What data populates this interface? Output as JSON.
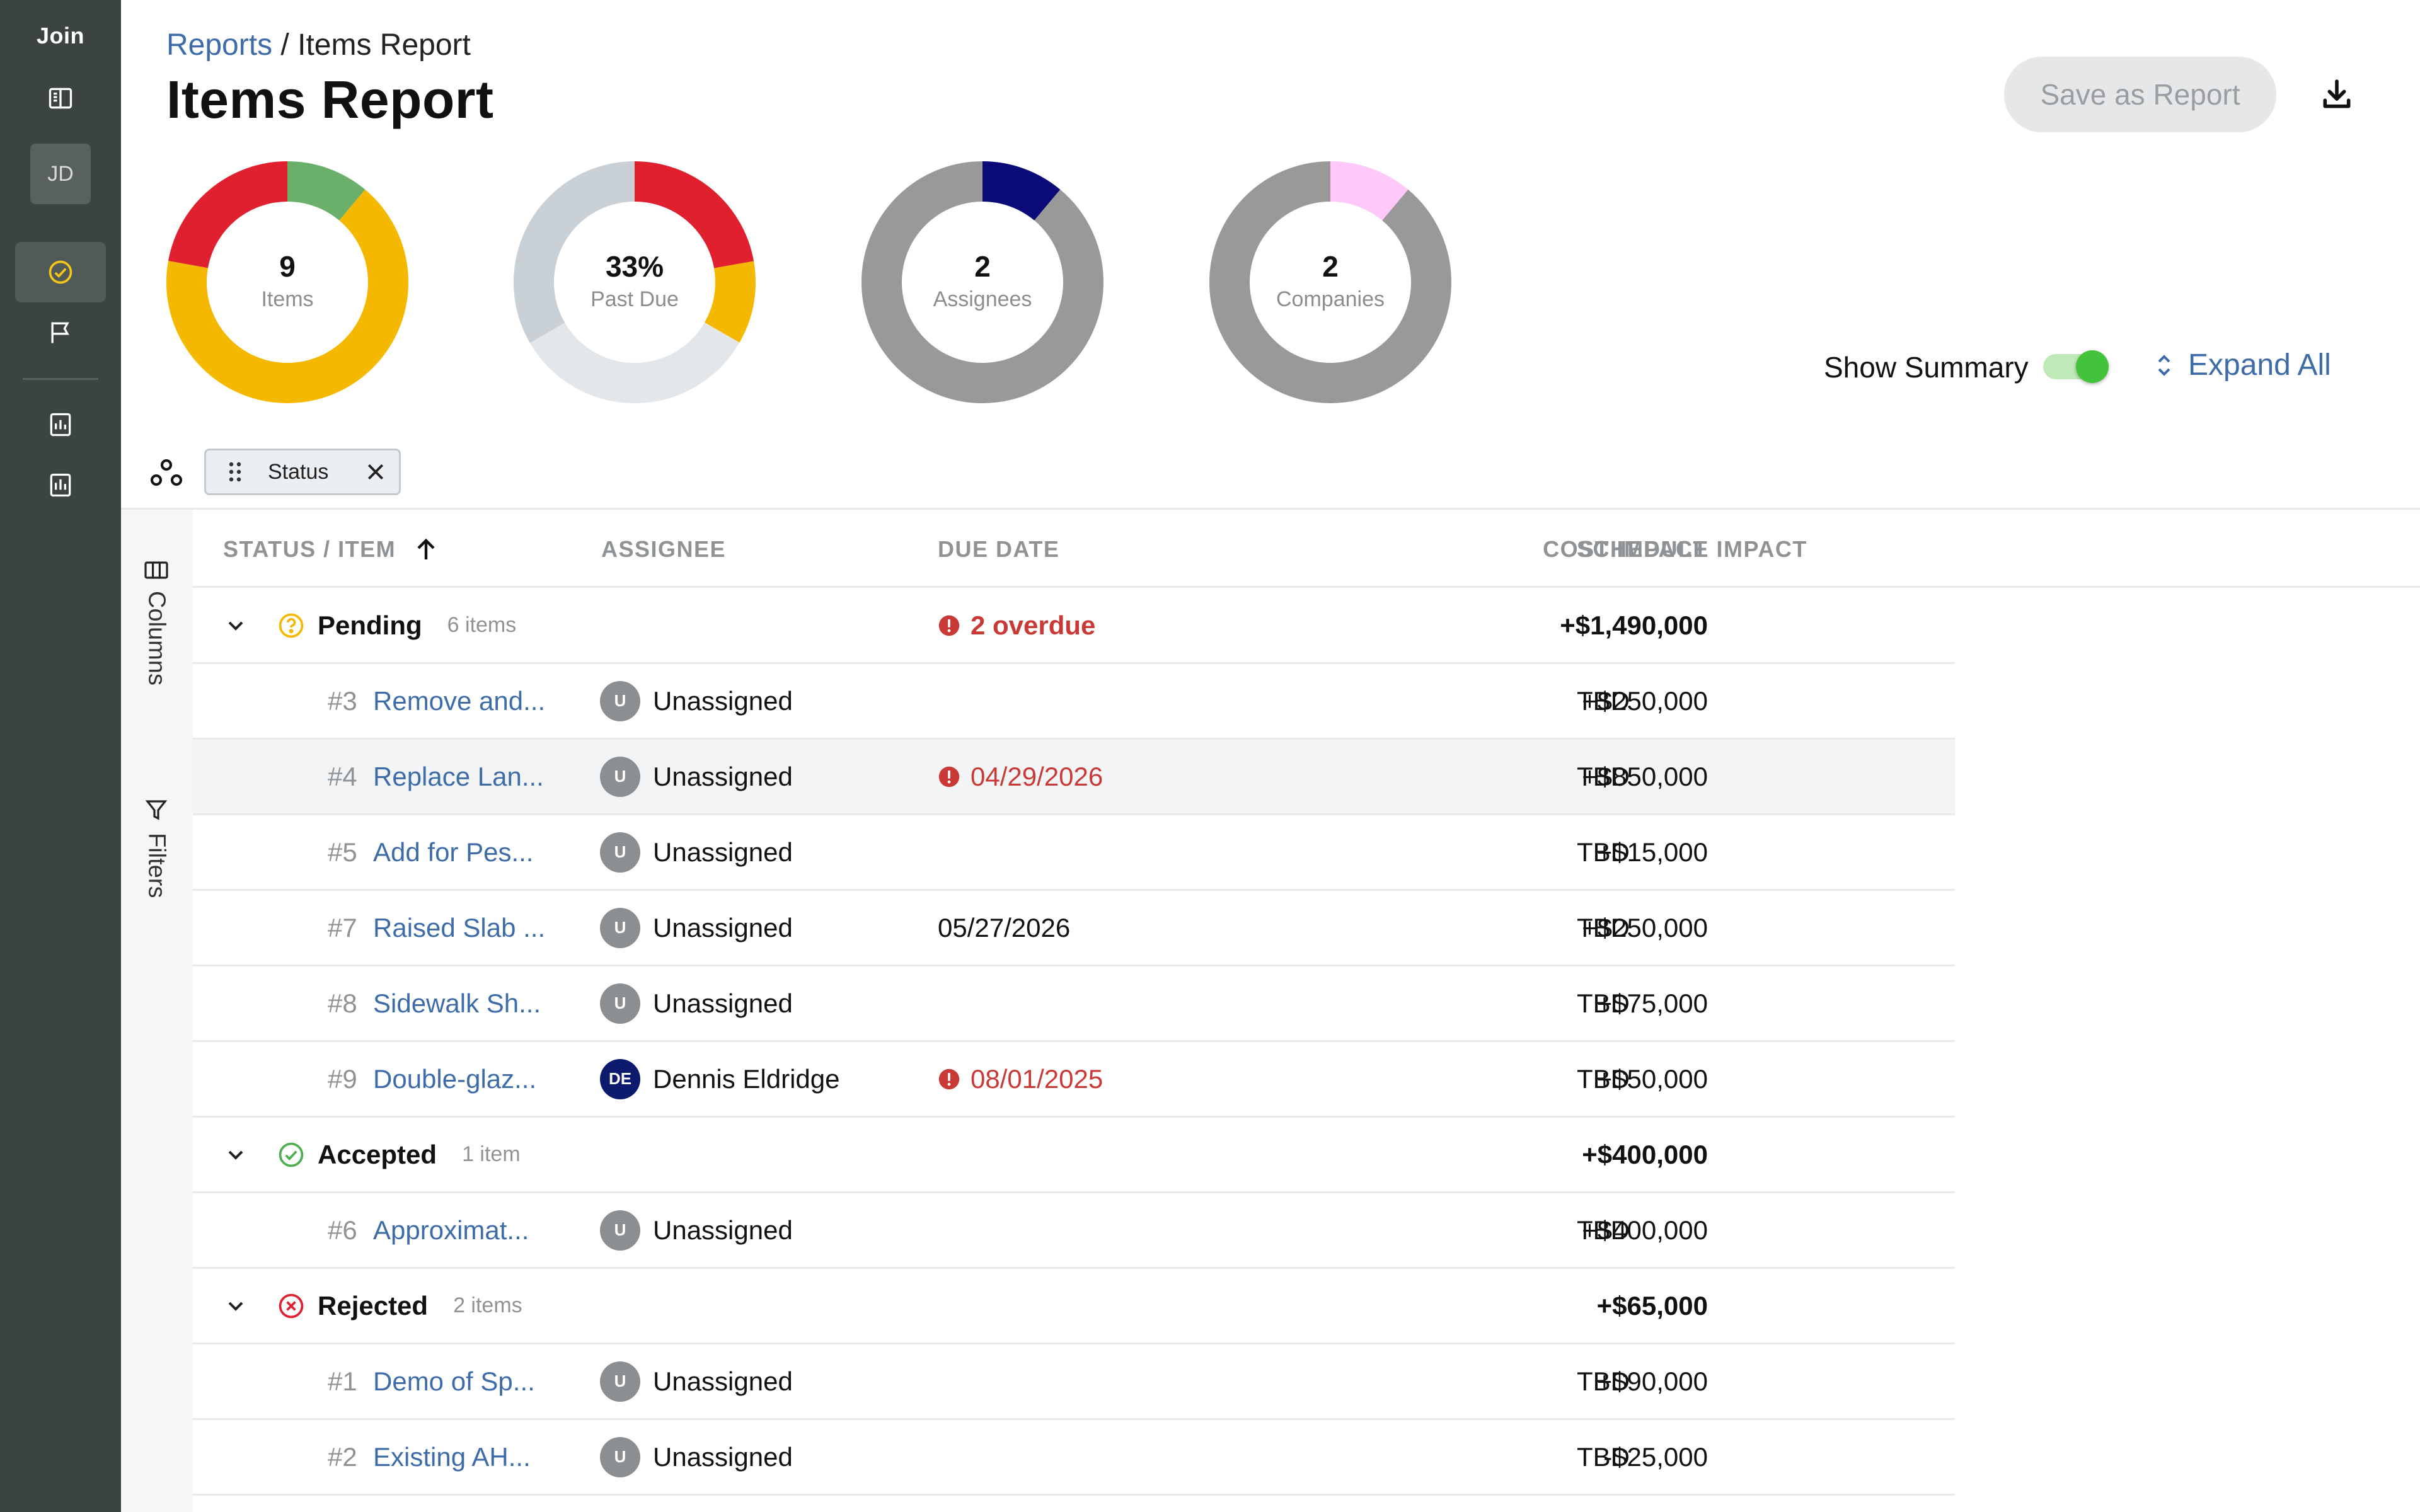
{
  "app": {
    "logo": "Join",
    "user_initials": "JD"
  },
  "header": {
    "breadcrumb_link": "Reports",
    "breadcrumb_separator": "/",
    "breadcrumb_current": "Items Report",
    "title": "Items Report",
    "save_label": "Save as Report"
  },
  "donuts": [
    {
      "value": "9",
      "label": "Items",
      "segments": [
        {
          "color": "#6ab06a",
          "fraction": 0.111
        },
        {
          "color": "#f5b800",
          "fraction": 0.667
        },
        {
          "color": "#e0202e",
          "fraction": 0.222
        }
      ]
    },
    {
      "value": "33%",
      "label": "Past Due",
      "segments": [
        {
          "color": "#e0202e",
          "fraction": 0.222
        },
        {
          "color": "#f5b800",
          "fraction": 0.111
        },
        {
          "color": "#e4e7ea",
          "fraction": 0.333
        },
        {
          "color": "#c9d0d6",
          "fraction": 0.334
        }
      ]
    },
    {
      "value": "2",
      "label": "Assignees",
      "segments": [
        {
          "color": "#0a0a78",
          "fraction": 0.111
        },
        {
          "color": "#999999",
          "fraction": 0.889
        }
      ]
    },
    {
      "value": "2",
      "label": "Companies",
      "segments": [
        {
          "color": "#ffc8f8",
          "fraction": 0.111
        },
        {
          "color": "#999999",
          "fraction": 0.889
        }
      ]
    }
  ],
  "summary": {
    "show_summary_label": "Show Summary",
    "show_summary_on": true,
    "expand_all_label": "Expand All"
  },
  "group_by": {
    "chip_label": "Status"
  },
  "rail": {
    "columns_label": "Columns",
    "filters_label": "Filters"
  },
  "table": {
    "columns": [
      "Status / Item",
      "Assignee",
      "Due Date",
      "Cost Impact",
      "Schedule Impact"
    ],
    "groups": [
      {
        "name": "Pending",
        "count": "6 items",
        "overdue": "2 overdue",
        "cost": "+$1,490,000",
        "items": [
          {
            "num": "#3",
            "name": "Remove and...",
            "initials": "U",
            "assignee": "Unassigned",
            "due": "",
            "late": false,
            "cost": "+$250,000",
            "schedule": "TBD"
          },
          {
            "num": "#4",
            "name": "Replace Lan...",
            "initials": "U",
            "assignee": "Unassigned",
            "due": "04/29/2026",
            "late": true,
            "cost": "+$850,000",
            "schedule": "TBD"
          },
          {
            "num": "#5",
            "name": "Add for Pes...",
            "initials": "U",
            "assignee": "Unassigned",
            "due": "",
            "late": false,
            "cost": "+$15,000",
            "schedule": "TBD"
          },
          {
            "num": "#7",
            "name": "Raised Slab ...",
            "initials": "U",
            "assignee": "Unassigned",
            "due": "05/27/2026",
            "late": false,
            "cost": "+$250,000",
            "schedule": "TBD"
          },
          {
            "num": "#8",
            "name": "Sidewalk Sh...",
            "initials": "U",
            "assignee": "Unassigned",
            "due": "",
            "late": false,
            "cost": "+$75,000",
            "schedule": "TBD"
          },
          {
            "num": "#9",
            "name": "Double-glaz...",
            "initials": "DE",
            "assignee": "Dennis Eldridge",
            "due": "08/01/2025",
            "late": true,
            "cost": "+$50,000",
            "schedule": "TBD"
          }
        ]
      },
      {
        "name": "Accepted",
        "count": "1 item",
        "overdue": "",
        "cost": "+$400,000",
        "items": [
          {
            "num": "#6",
            "name": "Approximat...",
            "initials": "U",
            "assignee": "Unassigned",
            "due": "",
            "late": false,
            "cost": "+$400,000",
            "schedule": "TBD"
          }
        ]
      },
      {
        "name": "Rejected",
        "count": "2 items",
        "overdue": "",
        "cost": "+$65,000",
        "items": [
          {
            "num": "#1",
            "name": "Demo of Sp...",
            "initials": "U",
            "assignee": "Unassigned",
            "due": "",
            "late": false,
            "cost": "+$90,000",
            "schedule": "TBD"
          },
          {
            "num": "#2",
            "name": "Existing AH...",
            "initials": "U",
            "assignee": "Unassigned",
            "due": "",
            "late": false,
            "cost": "-$25,000",
            "schedule": "TBD"
          }
        ]
      }
    ]
  },
  "colors": {
    "sidebar": "#3c4441",
    "link": "#3e6ca8",
    "overdue": "#c93a36",
    "pending": "#f5b800",
    "accepted": "#4caf50",
    "rejected": "#e0202e",
    "toggle_on": "#43c33c"
  },
  "icons": {
    "sidebar": [
      "panel-icon",
      "check-circle-icon",
      "flag-icon",
      "report-icon",
      "report-icon"
    ],
    "status": {
      "Pending": "question-circle-icon",
      "Accepted": "check-circle-icon",
      "Rejected": "x-circle-icon"
    }
  }
}
